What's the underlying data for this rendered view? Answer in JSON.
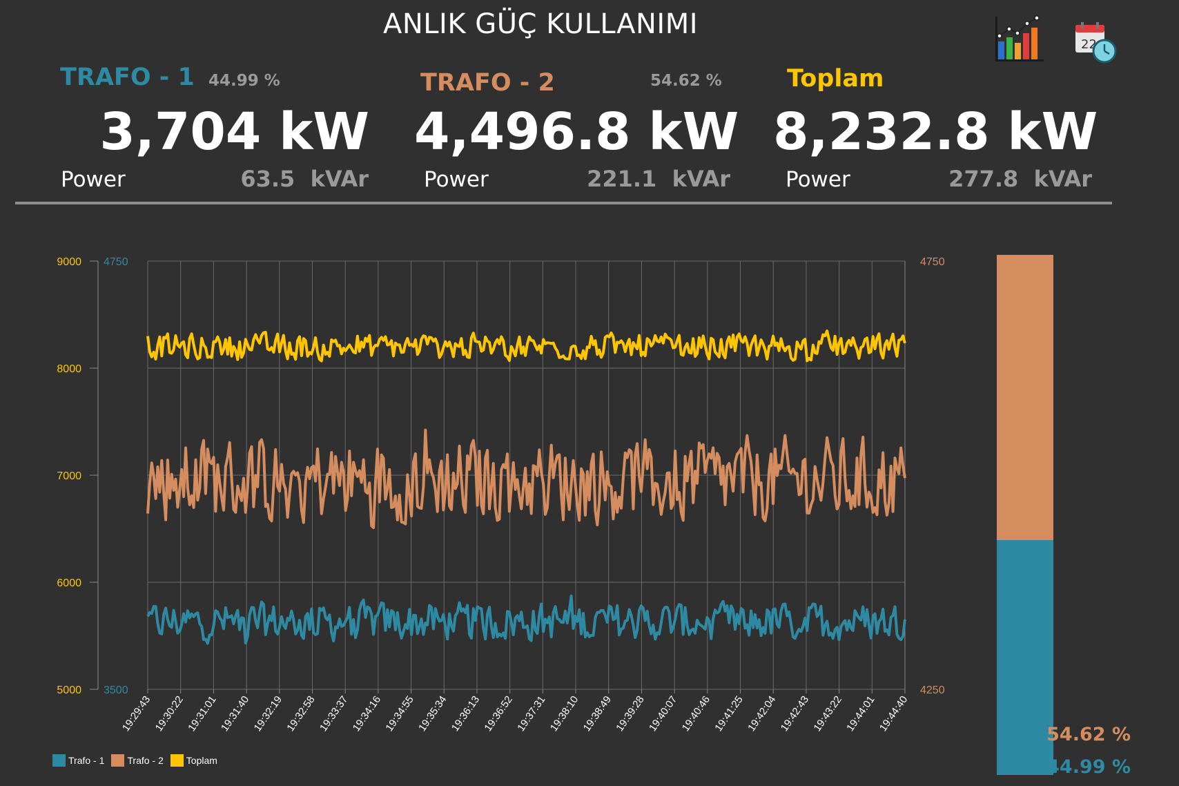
{
  "header": {
    "title": "ANLIK GÜÇ KULLANIMI"
  },
  "icons": [
    {
      "name": "bar-chart-icon"
    },
    {
      "name": "calendar-clock-icon",
      "text": "22"
    }
  ],
  "colors": {
    "trafo1": "#2e8aa3",
    "trafo2": "#d58c5e",
    "toplam": "#ffc600",
    "background": "#303030"
  },
  "panels": {
    "trafo1": {
      "name": "TRAFO - 1",
      "percent": "44.99 %",
      "power": "3,704 kW",
      "power_label": "Power",
      "kvar": "63.5  kVAr"
    },
    "trafo2": {
      "name": "TRAFO  - 2",
      "percent": "54.62 %",
      "power": "4,496.8 kW",
      "power_label": "Power",
      "kvar": "221.1  kVAr"
    },
    "toplam": {
      "name": "Toplam",
      "power": "8,232.8 kW",
      "power_label": "Power",
      "kvar": "277.8  kVAr"
    }
  },
  "chart_data": [
    {
      "type": "line",
      "title": "",
      "x_ticks": [
        "19:29:43",
        "19:30:22",
        "19:31:01",
        "19:31:40",
        "19:32:19",
        "19:32:58",
        "19:33:37",
        "19:34:16",
        "19:34:55",
        "19:35:34",
        "19:36:13",
        "19:36:52",
        "19:37:31",
        "19:38:10",
        "19:38:49",
        "19:39:28",
        "19:40:07",
        "19:40:46",
        "19:41:25",
        "19:42:04",
        "19:42:43",
        "19:43:22",
        "19:44:01",
        "19:44:40"
      ],
      "axes": {
        "y_left_outer": {
          "min": 5000,
          "max": 9000,
          "ticks": [
            5000,
            6000,
            7000,
            8000,
            9000
          ],
          "series": "Toplam"
        },
        "y_left_inner": {
          "min": 3500,
          "max": 4750,
          "ticks": [
            3500,
            4750
          ],
          "series": "Trafo - 1"
        },
        "y_right": {
          "min": 4250,
          "max": 4750,
          "ticks": [
            4250,
            4750
          ],
          "series": "Trafo - 2"
        }
      },
      "grid": true,
      "legend_position": "bottom-left",
      "series": [
        {
          "name": "Trafo - 1",
          "axis": "y_left_inner",
          "mean": 3697,
          "range": [
            3620,
            3780
          ],
          "last": 3704
        },
        {
          "name": "Trafo - 2",
          "axis": "y_right",
          "mean": 4494,
          "range": [
            4420,
            4560
          ],
          "last": 4496.8
        },
        {
          "name": "Toplam",
          "axis": "y_left_outer",
          "mean": 8200,
          "range": [
            8050,
            8400
          ],
          "last": 8232.8
        }
      ]
    },
    {
      "type": "bar",
      "stacked": true,
      "series": [
        {
          "name": "Trafo - 1",
          "value": 44.99,
          "label": "44.99 %"
        },
        {
          "name": "Trafo - 2",
          "value": 54.62,
          "label": "54.62 %"
        }
      ]
    }
  ]
}
